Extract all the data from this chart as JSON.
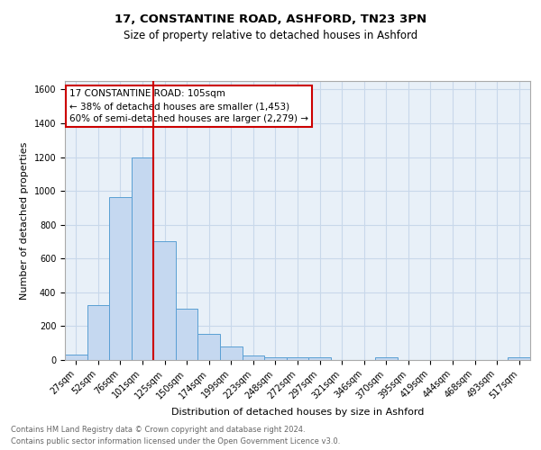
{
  "title1": "17, CONSTANTINE ROAD, ASHFORD, TN23 3PN",
  "title2": "Size of property relative to detached houses in Ashford",
  "xlabel": "Distribution of detached houses by size in Ashford",
  "ylabel": "Number of detached properties",
  "categories": [
    "27sqm",
    "52sqm",
    "76sqm",
    "101sqm",
    "125sqm",
    "150sqm",
    "174sqm",
    "199sqm",
    "223sqm",
    "248sqm",
    "272sqm",
    "297sqm",
    "321sqm",
    "346sqm",
    "370sqm",
    "395sqm",
    "419sqm",
    "444sqm",
    "468sqm",
    "493sqm",
    "517sqm"
  ],
  "values": [
    30,
    325,
    965,
    1200,
    700,
    305,
    155,
    80,
    27,
    18,
    15,
    15,
    0,
    0,
    15,
    0,
    0,
    0,
    0,
    0,
    15
  ],
  "bar_color": "#c5d8f0",
  "bar_edge_color": "#5a9fd4",
  "redline_x": 3.5,
  "annotation_text": "17 CONSTANTINE ROAD: 105sqm\n← 38% of detached houses are smaller (1,453)\n60% of semi-detached houses are larger (2,279) →",
  "annotation_box_color": "#ffffff",
  "annotation_box_edge_color": "#cc0000",
  "redline_color": "#cc0000",
  "ylim": [
    0,
    1650
  ],
  "yticks": [
    0,
    200,
    400,
    600,
    800,
    1000,
    1200,
    1400,
    1600
  ],
  "grid_color": "#c8d8ea",
  "background_color": "#e8f0f8",
  "footnote": "Contains HM Land Registry data © Crown copyright and database right 2024.\nContains public sector information licensed under the Open Government Licence v3.0.",
  "title1_fontsize": 9.5,
  "title2_fontsize": 8.5,
  "xlabel_fontsize": 8,
  "ylabel_fontsize": 8,
  "tick_fontsize": 7,
  "annotation_fontsize": 7.5,
  "footnote_fontsize": 6,
  "footnote_color": "#666666"
}
